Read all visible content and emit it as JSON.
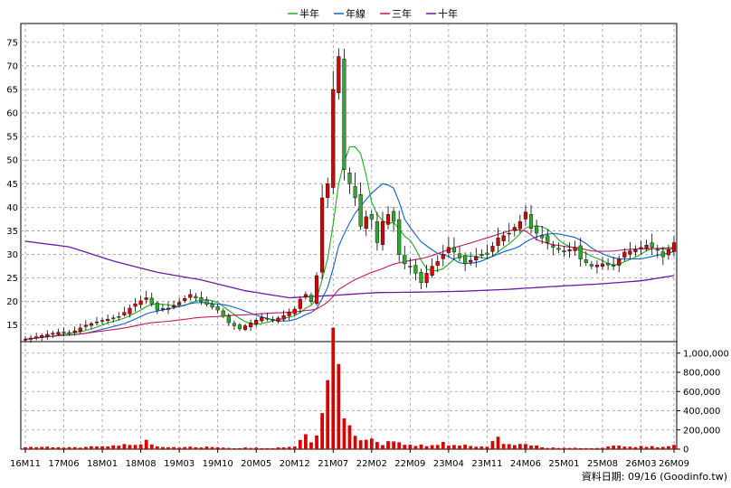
{
  "chart_data": {
    "type": "candlestick",
    "legend": [
      {
        "name": "半年",
        "color": "#22aa22"
      },
      {
        "name": "年線",
        "color": "#1060c8"
      },
      {
        "name": "三年",
        "color": "#c0185c"
      },
      {
        "name": "十年",
        "color": "#6a1aa0"
      }
    ],
    "price_axis": {
      "ticks": [
        15,
        20,
        25,
        30,
        35,
        40,
        45,
        50,
        55,
        60,
        65,
        70,
        75
      ],
      "range": [
        11.5,
        79
      ]
    },
    "volume_axis": {
      "ticks": [
        0,
        200000,
        400000,
        600000,
        800000,
        1000000
      ],
      "tick_labels": [
        "0",
        "200,000",
        "400,000",
        "600,000",
        "800,000",
        "1,000,000"
      ],
      "range": [
        0,
        1120000
      ]
    },
    "x_labels": [
      "16M11",
      "17M06",
      "18M01",
      "18M08",
      "19M03",
      "19M10",
      "20M05",
      "20M12",
      "21M07",
      "22M02",
      "22M09",
      "23M04",
      "23M11",
      "24M06",
      "25M01",
      "25M08",
      "26M03",
      "26M09"
    ],
    "x_label_index": [
      0,
      7,
      14,
      21,
      28,
      35,
      42,
      49,
      56,
      63,
      70,
      77,
      84,
      91,
      98,
      105,
      112,
      118
    ],
    "candle_count": 119,
    "up_color": "#d90000",
    "down_color": "#2fa82f",
    "ma_periods": [
      6,
      12,
      36
    ],
    "ten_year_line": [
      [
        0,
        32.8
      ],
      [
        8,
        31.6
      ],
      [
        16,
        28.6
      ],
      [
        24,
        26.2
      ],
      [
        32,
        24.6
      ],
      [
        40,
        22.3
      ],
      [
        48,
        20.8
      ],
      [
        56,
        21.3
      ],
      [
        64,
        21.9
      ],
      [
        72,
        22.0
      ],
      [
        80,
        22.2
      ],
      [
        88,
        22.6
      ],
      [
        96,
        23.2
      ],
      [
        104,
        23.7
      ],
      [
        112,
        24.4
      ],
      [
        118,
        25.5
      ]
    ],
    "price_anchors": [
      [
        0,
        12.0
      ],
      [
        3,
        12.8
      ],
      [
        6,
        13.5
      ],
      [
        8,
        13.2
      ],
      [
        11,
        15.0
      ],
      [
        14,
        16.0
      ],
      [
        17,
        16.8
      ],
      [
        20,
        19.5
      ],
      [
        22,
        20.8
      ],
      [
        24,
        18.2
      ],
      [
        26,
        18.6
      ],
      [
        28,
        19.8
      ],
      [
        30,
        21.5
      ],
      [
        32,
        20.0
      ],
      [
        35,
        18.2
      ],
      [
        37,
        15.5
      ],
      [
        39,
        14.2
      ],
      [
        41,
        15.5
      ],
      [
        43,
        16.6
      ],
      [
        45,
        16.0
      ],
      [
        47,
        17.0
      ],
      [
        49,
        18.4
      ],
      [
        50,
        20.5
      ],
      [
        51,
        21.5
      ],
      [
        52,
        20.0
      ],
      [
        53,
        25.5
      ],
      [
        54,
        42.0
      ],
      [
        55,
        45.0
      ],
      [
        56,
        65.0
      ],
      [
        57,
        72.0
      ],
      [
        58,
        48.0
      ],
      [
        59,
        45.0
      ],
      [
        60,
        42.0
      ],
      [
        61,
        36.0
      ],
      [
        62,
        38.0
      ],
      [
        63,
        37.5
      ],
      [
        64,
        32.5
      ],
      [
        65,
        37.0
      ],
      [
        66,
        38.5
      ],
      [
        67,
        37.0
      ],
      [
        68,
        30.0
      ],
      [
        69,
        28.0
      ],
      [
        70,
        27.5
      ],
      [
        71,
        26.0
      ],
      [
        72,
        24.0
      ],
      [
        73,
        26.0
      ],
      [
        74,
        27.5
      ],
      [
        75,
        28.5
      ],
      [
        76,
        30.0
      ],
      [
        77,
        31.5
      ],
      [
        78,
        30.5
      ],
      [
        80,
        28.0
      ],
      [
        82,
        29.5
      ],
      [
        84,
        30.0
      ],
      [
        86,
        33.5
      ],
      [
        88,
        34.5
      ],
      [
        90,
        37.0
      ],
      [
        91,
        39.0
      ],
      [
        92,
        35.5
      ],
      [
        94,
        33.5
      ],
      [
        96,
        31.5
      ],
      [
        98,
        30.5
      ],
      [
        100,
        31.5
      ],
      [
        101,
        29.0
      ],
      [
        103,
        27.5
      ],
      [
        105,
        28.0
      ],
      [
        107,
        27.5
      ],
      [
        109,
        30.5
      ],
      [
        111,
        31.0
      ],
      [
        113,
        32.0
      ],
      [
        115,
        31.0
      ],
      [
        116,
        29.5
      ],
      [
        117,
        31.0
      ],
      [
        118,
        32.5
      ]
    ],
    "volume_anchors": [
      [
        0,
        20000
      ],
      [
        4,
        22000
      ],
      [
        7,
        15000
      ],
      [
        11,
        22000
      ],
      [
        14,
        28000
      ],
      [
        18,
        45000
      ],
      [
        21,
        60000
      ],
      [
        22,
        110000
      ],
      [
        23,
        55000
      ],
      [
        24,
        30000
      ],
      [
        28,
        20000
      ],
      [
        32,
        22000
      ],
      [
        35,
        22000
      ],
      [
        38,
        12000
      ],
      [
        41,
        15000
      ],
      [
        44,
        12000
      ],
      [
        47,
        16000
      ],
      [
        49,
        35000
      ],
      [
        51,
        140000
      ],
      [
        52,
        70000
      ],
      [
        53,
        180000
      ],
      [
        54,
        350000
      ],
      [
        55,
        580000
      ],
      [
        56,
        1100000
      ],
      [
        57,
        900000
      ],
      [
        58,
        380000
      ],
      [
        59,
        200000
      ],
      [
        60,
        120000
      ],
      [
        61,
        90000
      ],
      [
        62,
        80000
      ],
      [
        63,
        90000
      ],
      [
        64,
        60000
      ],
      [
        65,
        40000
      ],
      [
        66,
        110000
      ],
      [
        67,
        70000
      ],
      [
        68,
        60000
      ],
      [
        70,
        40000
      ],
      [
        72,
        40000
      ],
      [
        74,
        35000
      ],
      [
        76,
        80000
      ],
      [
        77,
        40000
      ],
      [
        80,
        40000
      ],
      [
        82,
        30000
      ],
      [
        84,
        28000
      ],
      [
        86,
        130000
      ],
      [
        87,
        50000
      ],
      [
        88,
        45000
      ],
      [
        90,
        60000
      ],
      [
        92,
        40000
      ],
      [
        95,
        15000
      ],
      [
        98,
        14000
      ],
      [
        101,
        12000
      ],
      [
        104,
        12000
      ],
      [
        107,
        30000
      ],
      [
        110,
        28000
      ],
      [
        113,
        30000
      ],
      [
        116,
        20000
      ],
      [
        118,
        40000
      ]
    ],
    "credit": "資料日期: 09/16  (Goodinfo.tw)"
  }
}
